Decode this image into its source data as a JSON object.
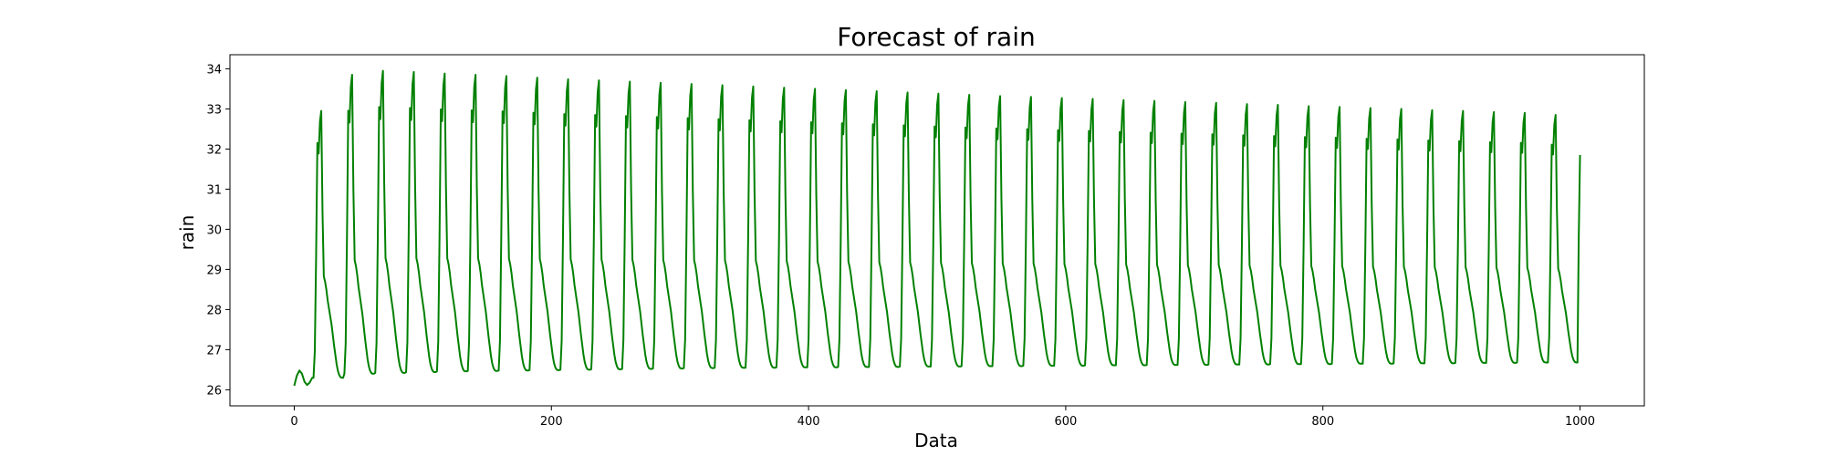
{
  "chart_data": {
    "type": "line",
    "title": "Forecast of rain",
    "xlabel": "Data",
    "ylabel": "rain",
    "xlim": [
      -50,
      1050
    ],
    "ylim": [
      25.6,
      34.35
    ],
    "xticks": [
      0,
      200,
      400,
      600,
      800,
      1000
    ],
    "yticks": [
      26,
      27,
      28,
      29,
      30,
      31,
      32,
      33,
      34
    ],
    "grid": false,
    "legend": "none",
    "line_color": "#008000",
    "period": 24,
    "cycle_starts": [
      15,
      39,
      63,
      87,
      111,
      135,
      159,
      183,
      207,
      231,
      255,
      279,
      303,
      327,
      351,
      375,
      399,
      423,
      447,
      471,
      495,
      519,
      543,
      567,
      591,
      615,
      639,
      663,
      687,
      711,
      735,
      759,
      783,
      807,
      831,
      855,
      879,
      903,
      927,
      951,
      975
    ],
    "cycle_peaks": [
      32.95,
      33.85,
      33.95,
      33.92,
      33.88,
      33.85,
      33.82,
      33.78,
      33.74,
      33.71,
      33.68,
      33.65,
      33.62,
      33.59,
      33.56,
      33.53,
      33.5,
      33.47,
      33.44,
      33.41,
      33.38,
      33.35,
      33.32,
      33.3,
      33.27,
      33.25,
      33.22,
      33.2,
      33.17,
      33.15,
      33.12,
      33.1,
      33.07,
      33.05,
      33.02,
      33.0,
      32.97,
      32.95,
      32.92,
      32.9,
      32.85
    ],
    "cycle_mins": [
      26.3,
      26.4,
      26.42,
      26.44,
      26.46,
      26.47,
      26.48,
      26.49,
      26.5,
      26.51,
      26.52,
      26.53,
      26.54,
      26.55,
      26.55,
      26.56,
      26.56,
      26.57,
      26.57,
      26.58,
      26.58,
      26.59,
      26.59,
      26.6,
      26.6,
      26.61,
      26.61,
      26.62,
      26.62,
      26.63,
      26.63,
      26.64,
      26.64,
      26.65,
      26.65,
      26.66,
      26.66,
      26.67,
      26.67,
      26.68,
      26.68
    ],
    "initial_points": [
      {
        "x": 0,
        "y": 26.1
      },
      {
        "x": 2,
        "y": 26.35
      },
      {
        "x": 4,
        "y": 26.48
      },
      {
        "x": 6,
        "y": 26.4
      },
      {
        "x": 8,
        "y": 26.2
      },
      {
        "x": 10,
        "y": 26.12
      },
      {
        "x": 12,
        "y": 26.18
      },
      {
        "x": 14,
        "y": 26.3
      }
    ],
    "final_points": [
      {
        "x": 999,
        "y": 29.8
      },
      {
        "x": 1000,
        "y": 31.85
      }
    ]
  }
}
